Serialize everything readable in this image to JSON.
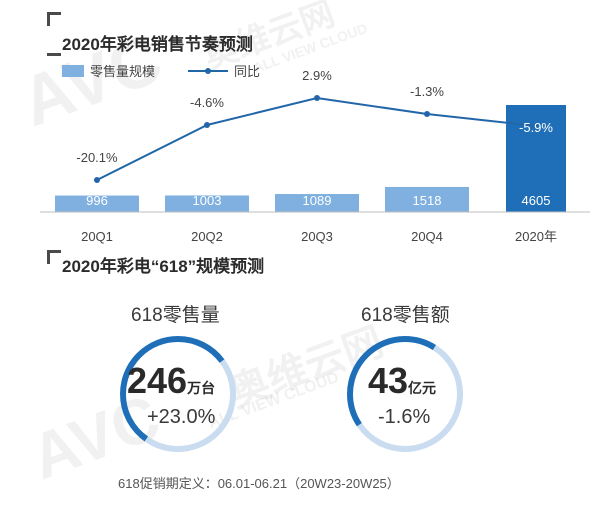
{
  "section1": {
    "title": "2020年彩电销售节奏预测"
  },
  "section2": {
    "title": "2020年彩电“618”规模预测"
  },
  "legend": {
    "bar_label": "零售量规模",
    "line_label": "同比"
  },
  "colors": {
    "bar": "#7fb0e0",
    "bar_highlight": "#1f6fb8",
    "line": "#2266aa",
    "ring": "#1f6fb8"
  },
  "chart_data": {
    "type": "bar",
    "categories": [
      "20Q1",
      "20Q2",
      "20Q3",
      "20Q4",
      "2020年"
    ],
    "series": [
      {
        "name": "零售量规模",
        "type": "bar",
        "values": [
          996,
          1003,
          1089,
          1518,
          4605
        ],
        "labels": [
          "996",
          "1003",
          "1089",
          "1518",
          "4605"
        ]
      },
      {
        "name": "同比",
        "type": "line",
        "values": [
          -20.1,
          -4.6,
          2.9,
          -1.3,
          -5.9
        ],
        "labels": [
          "-20.1%",
          "-4.6%",
          "2.9%",
          "-1.3%",
          "-5.9%"
        ]
      }
    ],
    "title": "2020年彩电销售节奏预测",
    "xlabel": "",
    "ylabel": "",
    "legend_position": "top-left",
    "highlight_index": 4
  },
  "stats": [
    {
      "label": "618零售量",
      "value": "246",
      "unit": "万台",
      "change": "+23.0%"
    },
    {
      "label": "618零售额",
      "value": "43",
      "unit": "亿元",
      "change": "-1.6%"
    }
  ],
  "footnote": "618促销期定义：06.01-06.21（20W23-20W25）",
  "watermark": {
    "logo": "AVC",
    "cn": "奥维云网",
    "en": "ALL VIEW CLOUD"
  }
}
